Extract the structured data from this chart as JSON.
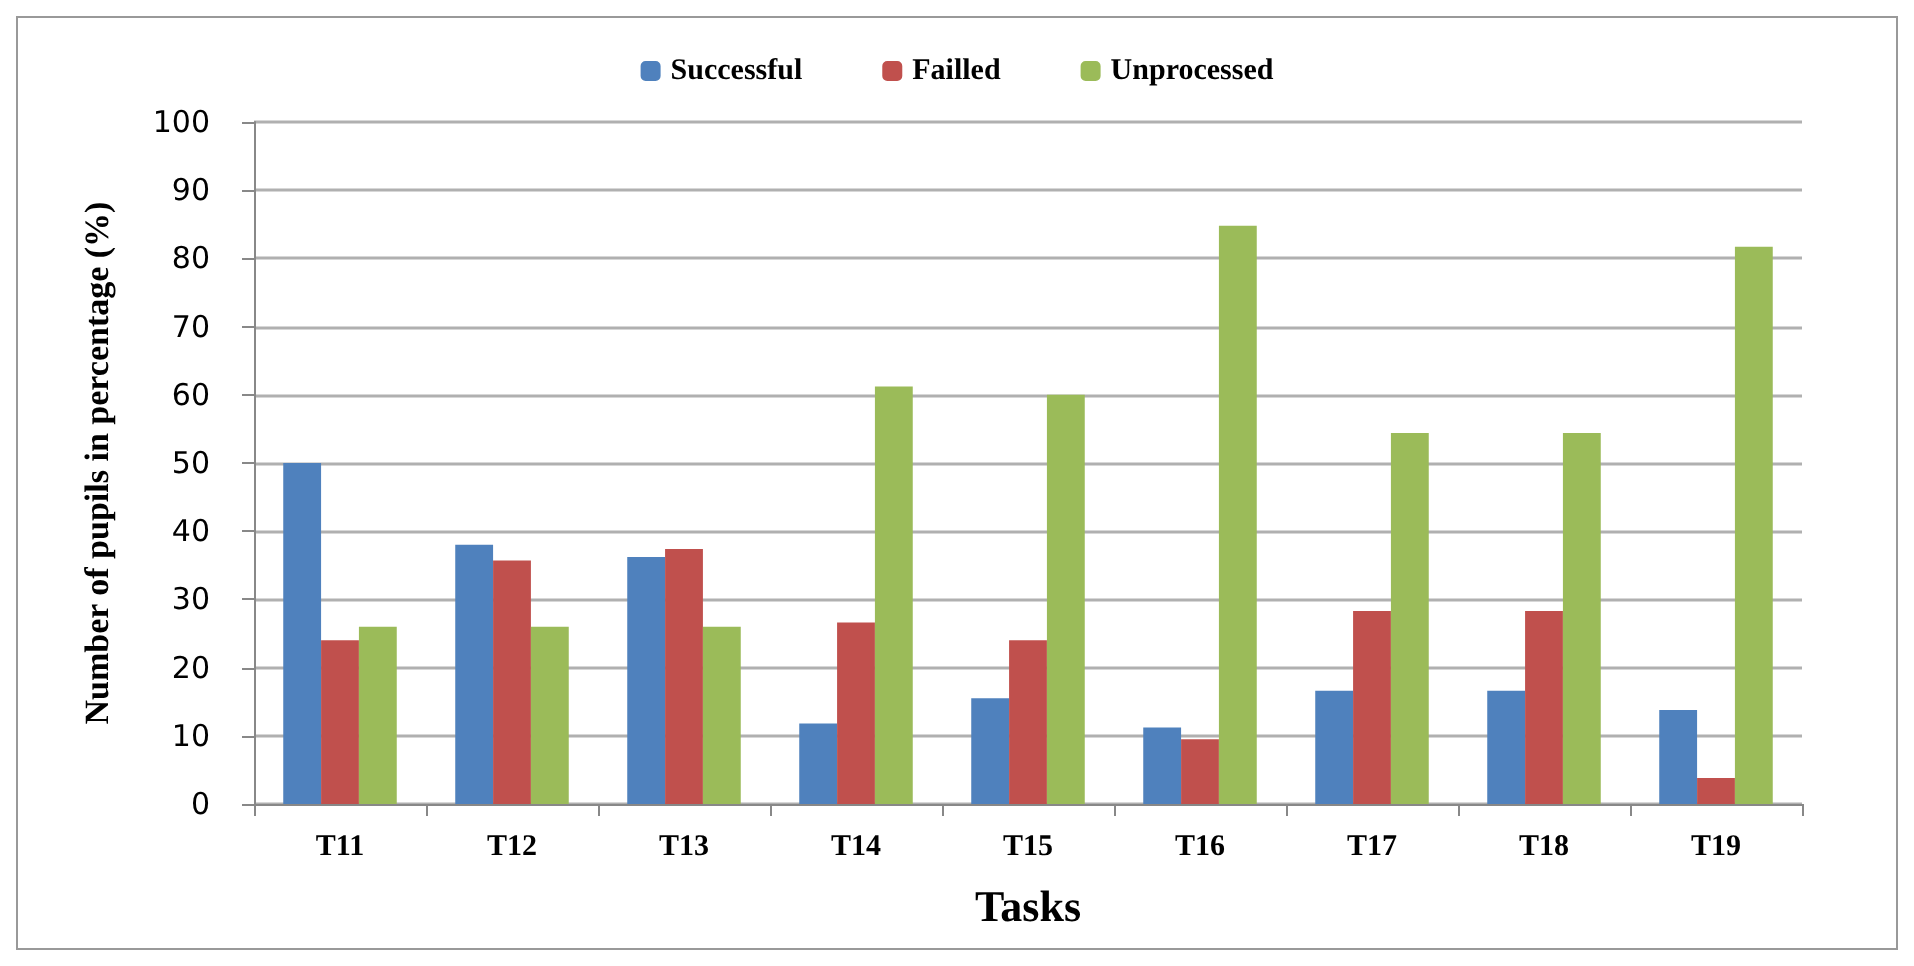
{
  "chart_data": {
    "type": "bar",
    "xlabel": "Tasks",
    "ylabel": "Number of pupils in percentage (%)",
    "categories": [
      "T11",
      "T12",
      "T13",
      "T14",
      "T15",
      "T16",
      "T17",
      "T18",
      "T19"
    ],
    "series": [
      {
        "name": "Successful",
        "color": "#4f81bd",
        "values": [
          50,
          38,
          36.2,
          11.8,
          15.5,
          11.2,
          16.6,
          16.6,
          13.8
        ]
      },
      {
        "name": "Failled",
        "color": "#c0504d",
        "values": [
          24,
          35.7,
          37.4,
          26.6,
          24,
          9.5,
          28.3,
          28.3,
          3.8
        ]
      },
      {
        "name": "Unprocessed",
        "color": "#9bbb59",
        "values": [
          26,
          26,
          26,
          61.2,
          60,
          84.8,
          54.4,
          54.4,
          81.7
        ]
      }
    ],
    "ylim": [
      0,
      100
    ],
    "yticks": [
      0,
      10,
      20,
      30,
      40,
      50,
      60,
      70,
      80,
      90,
      100
    ],
    "grid": "y",
    "legend": "top"
  }
}
